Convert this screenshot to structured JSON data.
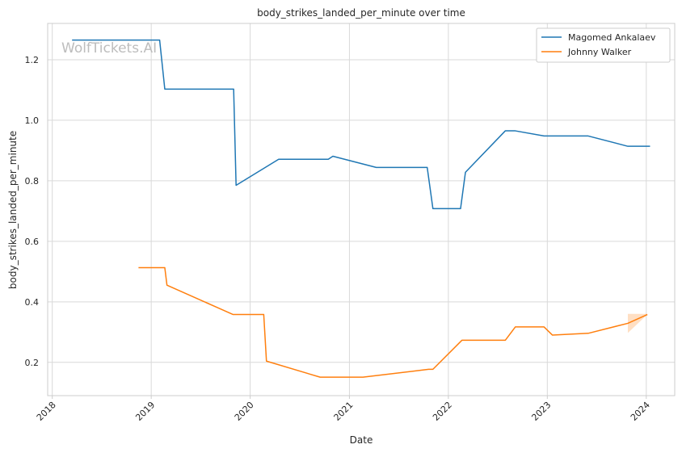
{
  "chart_data": {
    "type": "line",
    "title": "body_strikes_landed_per_minute over time",
    "xlabel": "Date",
    "ylabel": "body_strikes_landed_per_minute",
    "watermark": "WolfTickets.AI",
    "xlim": [
      "2017-12-15",
      "2024-04-15"
    ],
    "ylim": [
      0.09,
      1.32
    ],
    "x_ticks": [
      "2018",
      "2019",
      "2020",
      "2021",
      "2022",
      "2023",
      "2024"
    ],
    "x_tick_dates": [
      "2018-01-01",
      "2019-01-01",
      "2020-01-01",
      "2021-01-01",
      "2022-01-01",
      "2023-01-01",
      "2024-01-01"
    ],
    "y_ticks": [
      "0.2",
      "0.4",
      "0.6",
      "0.8",
      "1.0",
      "1.2"
    ],
    "y_tick_values": [
      0.2,
      0.4,
      0.6,
      0.8,
      1.0,
      1.2
    ],
    "grid": true,
    "legend_position": "top-right",
    "series": [
      {
        "name": "Magomed Ankalaev",
        "color": "#1f77b4",
        "points": [
          [
            "2018-03-15",
            1.265
          ],
          [
            "2019-02-01",
            1.265
          ],
          [
            "2019-02-20",
            1.103
          ],
          [
            "2019-11-01",
            1.103
          ],
          [
            "2019-11-10",
            0.785
          ],
          [
            "2020-04-15",
            0.871
          ],
          [
            "2020-10-15",
            0.871
          ],
          [
            "2020-11-01",
            0.881
          ],
          [
            "2021-04-10",
            0.844
          ],
          [
            "2021-10-15",
            0.844
          ],
          [
            "2021-11-05",
            0.708
          ],
          [
            "2022-02-15",
            0.708
          ],
          [
            "2022-03-05",
            0.828
          ],
          [
            "2022-07-30",
            0.965
          ],
          [
            "2022-09-05",
            0.965
          ],
          [
            "2022-12-20",
            0.948
          ],
          [
            "2023-06-01",
            0.948
          ],
          [
            "2023-10-25",
            0.914
          ],
          [
            "2024-01-15",
            0.914
          ]
        ]
      },
      {
        "name": "Johnny Walker",
        "color": "#ff7f0e",
        "points": [
          [
            "2018-11-15",
            0.513
          ],
          [
            "2019-02-20",
            0.513
          ],
          [
            "2019-02-28",
            0.455
          ],
          [
            "2019-10-30",
            0.358
          ],
          [
            "2020-02-20",
            0.358
          ],
          [
            "2020-03-01",
            0.204
          ],
          [
            "2020-09-15",
            0.151
          ],
          [
            "2021-02-20",
            0.151
          ],
          [
            "2021-10-20",
            0.177
          ],
          [
            "2021-11-05",
            0.177
          ],
          [
            "2022-02-20",
            0.273
          ],
          [
            "2022-07-30",
            0.273
          ],
          [
            "2022-09-05",
            0.317
          ],
          [
            "2022-12-20",
            0.317
          ],
          [
            "2023-01-20",
            0.29
          ],
          [
            "2023-06-01",
            0.296
          ],
          [
            "2023-10-25",
            0.329
          ],
          [
            "2024-01-05",
            0.358
          ]
        ],
        "band": {
          "x": [
            "2023-10-25",
            "2024-01-05"
          ],
          "upper": [
            0.36,
            0.36
          ],
          "lower": [
            0.297,
            0.358
          ]
        }
      }
    ]
  }
}
